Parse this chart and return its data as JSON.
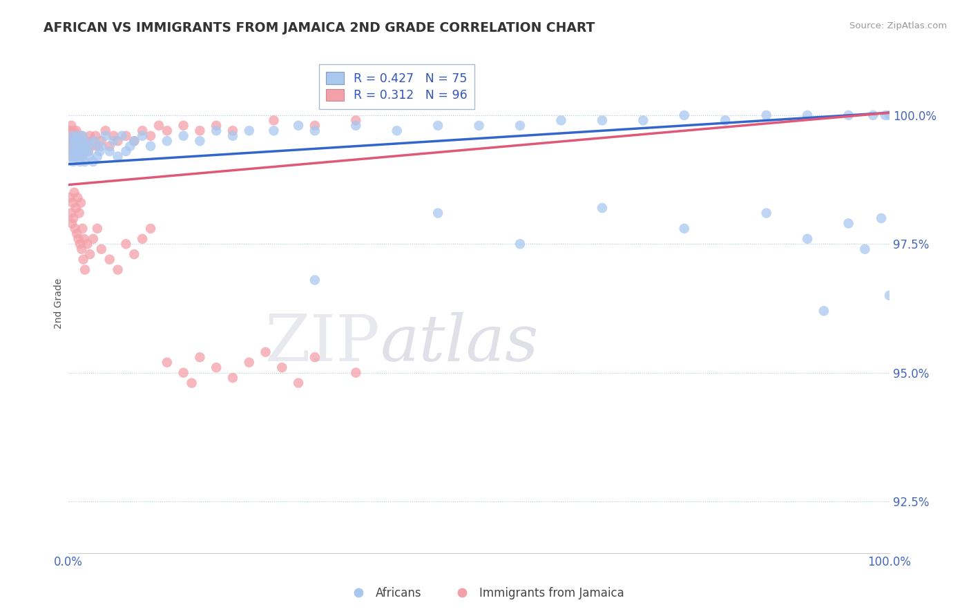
{
  "title": "AFRICAN VS IMMIGRANTS FROM JAMAICA 2ND GRADE CORRELATION CHART",
  "source": "Source: ZipAtlas.com",
  "ylabel": "2nd Grade",
  "xlim": [
    0.0,
    100.0
  ],
  "ylim": [
    91.5,
    101.2
  ],
  "yticks": [
    92.5,
    95.0,
    97.5,
    100.0
  ],
  "xtick_labels": [
    "0.0%",
    "100.0%"
  ],
  "ytick_labels": [
    "92.5%",
    "95.0%",
    "97.5%",
    "100.0%"
  ],
  "legend_r1": "R = 0.427",
  "legend_n1": "N = 75",
  "legend_r2": "R = 0.312",
  "legend_n2": "N = 96",
  "blue_color": "#A8C8F0",
  "pink_color": "#F4A0A8",
  "trend_blue": "#3366CC",
  "trend_pink": "#E05878",
  "watermark_zip": "ZIP",
  "watermark_atlas": "atlas",
  "africans_label": "Africans",
  "jamaica_label": "Immigrants from Jamaica",
  "blue_scatter_x": [
    0.2,
    0.3,
    0.4,
    0.5,
    0.6,
    0.7,
    0.8,
    0.9,
    1.0,
    1.1,
    1.2,
    1.3,
    1.4,
    1.5,
    1.6,
    1.7,
    1.8,
    1.9,
    2.0,
    2.1,
    2.3,
    2.5,
    2.7,
    3.0,
    3.2,
    3.5,
    3.8,
    4.0,
    4.5,
    5.0,
    5.5,
    6.0,
    6.5,
    7.0,
    7.5,
    8.0,
    9.0,
    10.0,
    12.0,
    14.0,
    16.0,
    18.0,
    20.0,
    22.0,
    25.0,
    28.0,
    30.0,
    35.0,
    40.0,
    45.0,
    50.0,
    55.0,
    60.0,
    65.0,
    70.0,
    75.0,
    80.0,
    85.0,
    90.0,
    95.0,
    98.0,
    99.5,
    100.0,
    30.0,
    45.0,
    55.0,
    65.0,
    75.0,
    85.0,
    90.0,
    92.0,
    95.0,
    97.0,
    99.0,
    100.0
  ],
  "blue_scatter_y": [
    99.3,
    99.5,
    99.2,
    99.6,
    99.1,
    99.4,
    99.3,
    99.5,
    99.2,
    99.6,
    99.3,
    99.4,
    99.1,
    99.5,
    99.2,
    99.6,
    99.3,
    99.4,
    99.1,
    99.5,
    99.3,
    99.2,
    99.4,
    99.1,
    99.5,
    99.2,
    99.3,
    99.4,
    99.6,
    99.3,
    99.5,
    99.2,
    99.6,
    99.3,
    99.4,
    99.5,
    99.6,
    99.4,
    99.5,
    99.6,
    99.5,
    99.7,
    99.6,
    99.7,
    99.7,
    99.8,
    99.7,
    99.8,
    99.7,
    99.8,
    99.8,
    99.8,
    99.9,
    99.9,
    99.9,
    100.0,
    99.9,
    100.0,
    100.0,
    100.0,
    100.0,
    100.0,
    100.0,
    96.8,
    98.1,
    97.5,
    98.2,
    97.8,
    98.1,
    97.6,
    96.2,
    97.9,
    97.4,
    98.0,
    96.5
  ],
  "pink_scatter_x": [
    0.1,
    0.15,
    0.2,
    0.25,
    0.3,
    0.35,
    0.4,
    0.45,
    0.5,
    0.55,
    0.6,
    0.65,
    0.7,
    0.75,
    0.8,
    0.85,
    0.9,
    0.95,
    1.0,
    1.1,
    1.2,
    1.3,
    1.4,
    1.5,
    1.6,
    1.7,
    1.8,
    1.9,
    2.0,
    2.2,
    2.4,
    2.6,
    2.8,
    3.0,
    3.3,
    3.6,
    4.0,
    4.5,
    5.0,
    5.5,
    6.0,
    7.0,
    8.0,
    9.0,
    10.0,
    11.0,
    12.0,
    14.0,
    16.0,
    18.0,
    20.0,
    25.0,
    30.0,
    35.0,
    0.2,
    0.3,
    0.4,
    0.5,
    0.6,
    0.7,
    0.8,
    0.9,
    1.0,
    1.1,
    1.2,
    1.3,
    1.4,
    1.5,
    1.6,
    1.7,
    1.8,
    1.9,
    2.0,
    2.3,
    2.6,
    3.0,
    3.5,
    4.0,
    5.0,
    6.0,
    7.0,
    8.0,
    9.0,
    10.0,
    12.0,
    14.0,
    15.0,
    16.0,
    18.0,
    20.0,
    22.0,
    24.0,
    26.0,
    28.0,
    30.0,
    35.0
  ],
  "pink_scatter_y": [
    99.5,
    99.7,
    99.3,
    99.6,
    99.2,
    99.8,
    99.4,
    99.5,
    99.6,
    99.3,
    99.7,
    99.2,
    99.5,
    99.4,
    99.6,
    99.3,
    99.5,
    99.7,
    99.4,
    99.3,
    99.6,
    99.2,
    99.5,
    99.4,
    99.6,
    99.2,
    99.5,
    99.3,
    99.4,
    99.5,
    99.3,
    99.6,
    99.4,
    99.5,
    99.6,
    99.4,
    99.5,
    99.7,
    99.4,
    99.6,
    99.5,
    99.6,
    99.5,
    99.7,
    99.6,
    99.8,
    99.7,
    99.8,
    99.7,
    99.8,
    99.7,
    99.9,
    99.8,
    99.9,
    98.4,
    98.1,
    97.9,
    98.3,
    98.0,
    98.5,
    97.8,
    98.2,
    97.7,
    98.4,
    97.6,
    98.1,
    97.5,
    98.3,
    97.4,
    97.8,
    97.2,
    97.6,
    97.0,
    97.5,
    97.3,
    97.6,
    97.8,
    97.4,
    97.2,
    97.0,
    97.5,
    97.3,
    97.6,
    97.8,
    95.2,
    95.0,
    94.8,
    95.3,
    95.1,
    94.9,
    95.2,
    95.4,
    95.1,
    94.8,
    95.3,
    95.0
  ]
}
